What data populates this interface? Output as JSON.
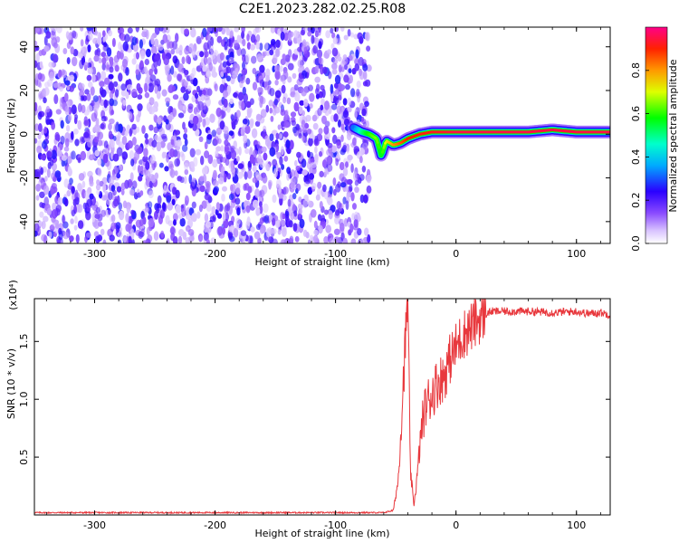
{
  "title": "C2E1.2023.282.02.25.R08",
  "chart_data": [
    {
      "type": "heatmap",
      "xlabel": "Height of straight line (km)",
      "ylabel": "Frequency (Hz)",
      "xlim": [
        -350,
        128
      ],
      "ylim": [
        -50,
        49
      ],
      "xticks": [
        -300,
        -200,
        -100,
        0,
        100
      ],
      "yticks": [
        -40,
        -20,
        0,
        20,
        40
      ],
      "colorbar": {
        "label": "Normalized spectral amplitude",
        "range": [
          0,
          1
        ],
        "ticks": [
          0.0,
          0.2,
          0.4,
          0.6,
          0.8
        ]
      },
      "noise_region": {
        "x": [
          -350,
          -72
        ],
        "frequency": [
          -50,
          49
        ]
      },
      "signal_line": {
        "x": [
          -85,
          -78,
          -72,
          -66,
          -62,
          -58,
          -52,
          -46,
          -40,
          -30,
          -20,
          -10,
          0,
          20,
          40,
          60,
          80,
          100,
          128
        ],
        "frequency": [
          3,
          1,
          0,
          -2,
          -10,
          -3,
          -5,
          -4,
          -2,
          0,
          1,
          1,
          1,
          1,
          1,
          1,
          2,
          1,
          1
        ],
        "amplitude": [
          0.3,
          0.5,
          0.6,
          0.65,
          0.55,
          0.7,
          0.8,
          0.85,
          0.9,
          0.9,
          0.92,
          0.93,
          0.95,
          0.95,
          0.95,
          0.95,
          0.95,
          0.95,
          0.95
        ]
      }
    },
    {
      "type": "line",
      "xlabel": "Height of straight line (km)",
      "ylabel": "SNR (10 * v/v)",
      "scale_label": "(x10⁴)",
      "xlim": [
        -350,
        128
      ],
      "ylim": [
        0,
        1.87
      ],
      "xticks": [
        -300,
        -200,
        -100,
        0,
        100
      ],
      "yticks": [
        0.5,
        1.0,
        1.5
      ],
      "color": "#e8383d",
      "series": [
        {
          "x": [
            -350,
            -60,
            -52,
            -48,
            -45,
            -42,
            -40,
            -38,
            -35,
            -32,
            -30,
            -28,
            -25,
            -20,
            -15,
            -10,
            -5,
            0,
            5,
            10,
            15,
            20,
            25,
            30,
            40,
            60,
            80,
            100,
            110,
            120,
            128
          ],
          "values": [
            0.02,
            0.02,
            0.04,
            0.3,
            0.9,
            1.5,
            1.87,
            0.4,
            0.08,
            0.35,
            0.6,
            0.8,
            0.95,
            1.05,
            1.15,
            1.2,
            1.35,
            1.45,
            1.55,
            1.6,
            1.65,
            1.7,
            1.74,
            1.76,
            1.76,
            1.76,
            1.75,
            1.76,
            1.74,
            1.75,
            1.73
          ]
        }
      ]
    }
  ]
}
